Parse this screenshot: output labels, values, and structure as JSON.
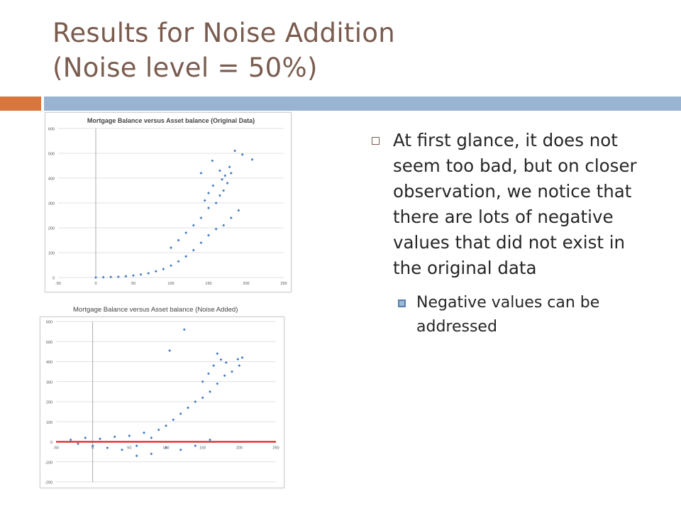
{
  "slide": {
    "title_line1": "Results for Noise Addition",
    "title_line2": "(Noise level = 50%)"
  },
  "bullets": {
    "main": "At first glance, it does not seem too bad, but on closer observation, we notice that there are lots of negative values that did not exist in the original data",
    "sub": "Negative values can be addressed"
  },
  "colors": {
    "title": "#7a5c4f",
    "accent_bar": "#d8763e",
    "main_bar": "#98b4d2",
    "points": "#4a7fc1",
    "zero_line": "#e02020"
  },
  "chart_data": [
    {
      "type": "scatter",
      "title": "Mortgage Balance versus Asset balance (Original Data)",
      "xlabel": "",
      "ylabel": "",
      "xlim": [
        -50,
        250
      ],
      "ylim": [
        0,
        600
      ],
      "x_ticks": [
        "-50",
        "0",
        "50",
        "100",
        "150",
        "200",
        "250"
      ],
      "y_ticks": [
        "0",
        "100",
        "200",
        "300",
        "400",
        "500",
        "600"
      ],
      "grid": "horizontal",
      "series": [
        {
          "points": [
            [
              0,
              0
            ],
            [
              10,
              1
            ],
            [
              20,
              2
            ],
            [
              30,
              3
            ],
            [
              40,
              5
            ],
            [
              50,
              8
            ],
            [
              60,
              12
            ],
            [
              70,
              17
            ],
            [
              80,
              25
            ],
            [
              90,
              34
            ],
            [
              100,
              48
            ],
            [
              110,
              65
            ],
            [
              120,
              85
            ],
            [
              130,
              110
            ],
            [
              140,
              140
            ],
            [
              150,
              170
            ],
            [
              160,
              195
            ],
            [
              170,
              210
            ],
            [
              180,
              240
            ],
            [
              190,
              270
            ],
            [
              100,
              120
            ],
            [
              110,
              150
            ],
            [
              120,
              180
            ],
            [
              130,
              210
            ],
            [
              140,
              240
            ],
            [
              150,
              280
            ],
            [
              160,
              300
            ],
            [
              165,
              330
            ],
            [
              170,
              350
            ],
            [
              175,
              380
            ],
            [
              180,
              420
            ],
            [
              140,
              420
            ],
            [
              155,
              470
            ],
            [
              185,
              510
            ],
            [
              195,
              495
            ],
            [
              208,
              475
            ],
            [
              165,
              430
            ],
            [
              172,
              410
            ],
            [
              178,
              445
            ],
            [
              168,
              395
            ],
            [
              156,
              370
            ],
            [
              150,
              340
            ],
            [
              145,
              310
            ]
          ]
        }
      ]
    },
    {
      "type": "scatter",
      "title": "Mortgage Balance versus Asset balance (Noise Added)",
      "xlabel": "",
      "ylabel": "",
      "xlim": [
        -50,
        250
      ],
      "ylim": [
        -200,
        600
      ],
      "x_ticks": [
        "-50",
        "0",
        "50",
        "100",
        "150",
        "200",
        "250"
      ],
      "y_ticks": [
        "-200",
        "-100",
        "0",
        "100",
        "200",
        "300",
        "400",
        "500",
        "600"
      ],
      "grid": "horizontal",
      "reference_line": {
        "y": 0,
        "color": "#e02020"
      },
      "series": [
        {
          "points": [
            [
              -30,
              10
            ],
            [
              -20,
              -10
            ],
            [
              -10,
              20
            ],
            [
              0,
              -20
            ],
            [
              10,
              15
            ],
            [
              20,
              -30
            ],
            [
              30,
              25
            ],
            [
              40,
              -40
            ],
            [
              50,
              30
            ],
            [
              60,
              -20
            ],
            [
              70,
              45
            ],
            [
              80,
              20
            ],
            [
              90,
              60
            ],
            [
              100,
              80
            ],
            [
              110,
              110
            ],
            [
              120,
              140
            ],
            [
              130,
              170
            ],
            [
              140,
              200
            ],
            [
              150,
              220
            ],
            [
              160,
              250
            ],
            [
              170,
              290
            ],
            [
              180,
              330
            ],
            [
              190,
              350
            ],
            [
              200,
              380
            ],
            [
              100,
              -30
            ],
            [
              120,
              -40
            ],
            [
              80,
              -60
            ],
            [
              60,
              -70
            ],
            [
              140,
              -20
            ],
            [
              160,
              10
            ],
            [
              125,
              560
            ],
            [
              170,
              440
            ],
            [
              182,
              395
            ],
            [
              198,
              412
            ],
            [
              204,
              420
            ],
            [
              105,
              455
            ],
            [
              150,
              300
            ],
            [
              158,
              340
            ],
            [
              165,
              380
            ],
            [
              175,
              410
            ]
          ]
        }
      ]
    }
  ]
}
